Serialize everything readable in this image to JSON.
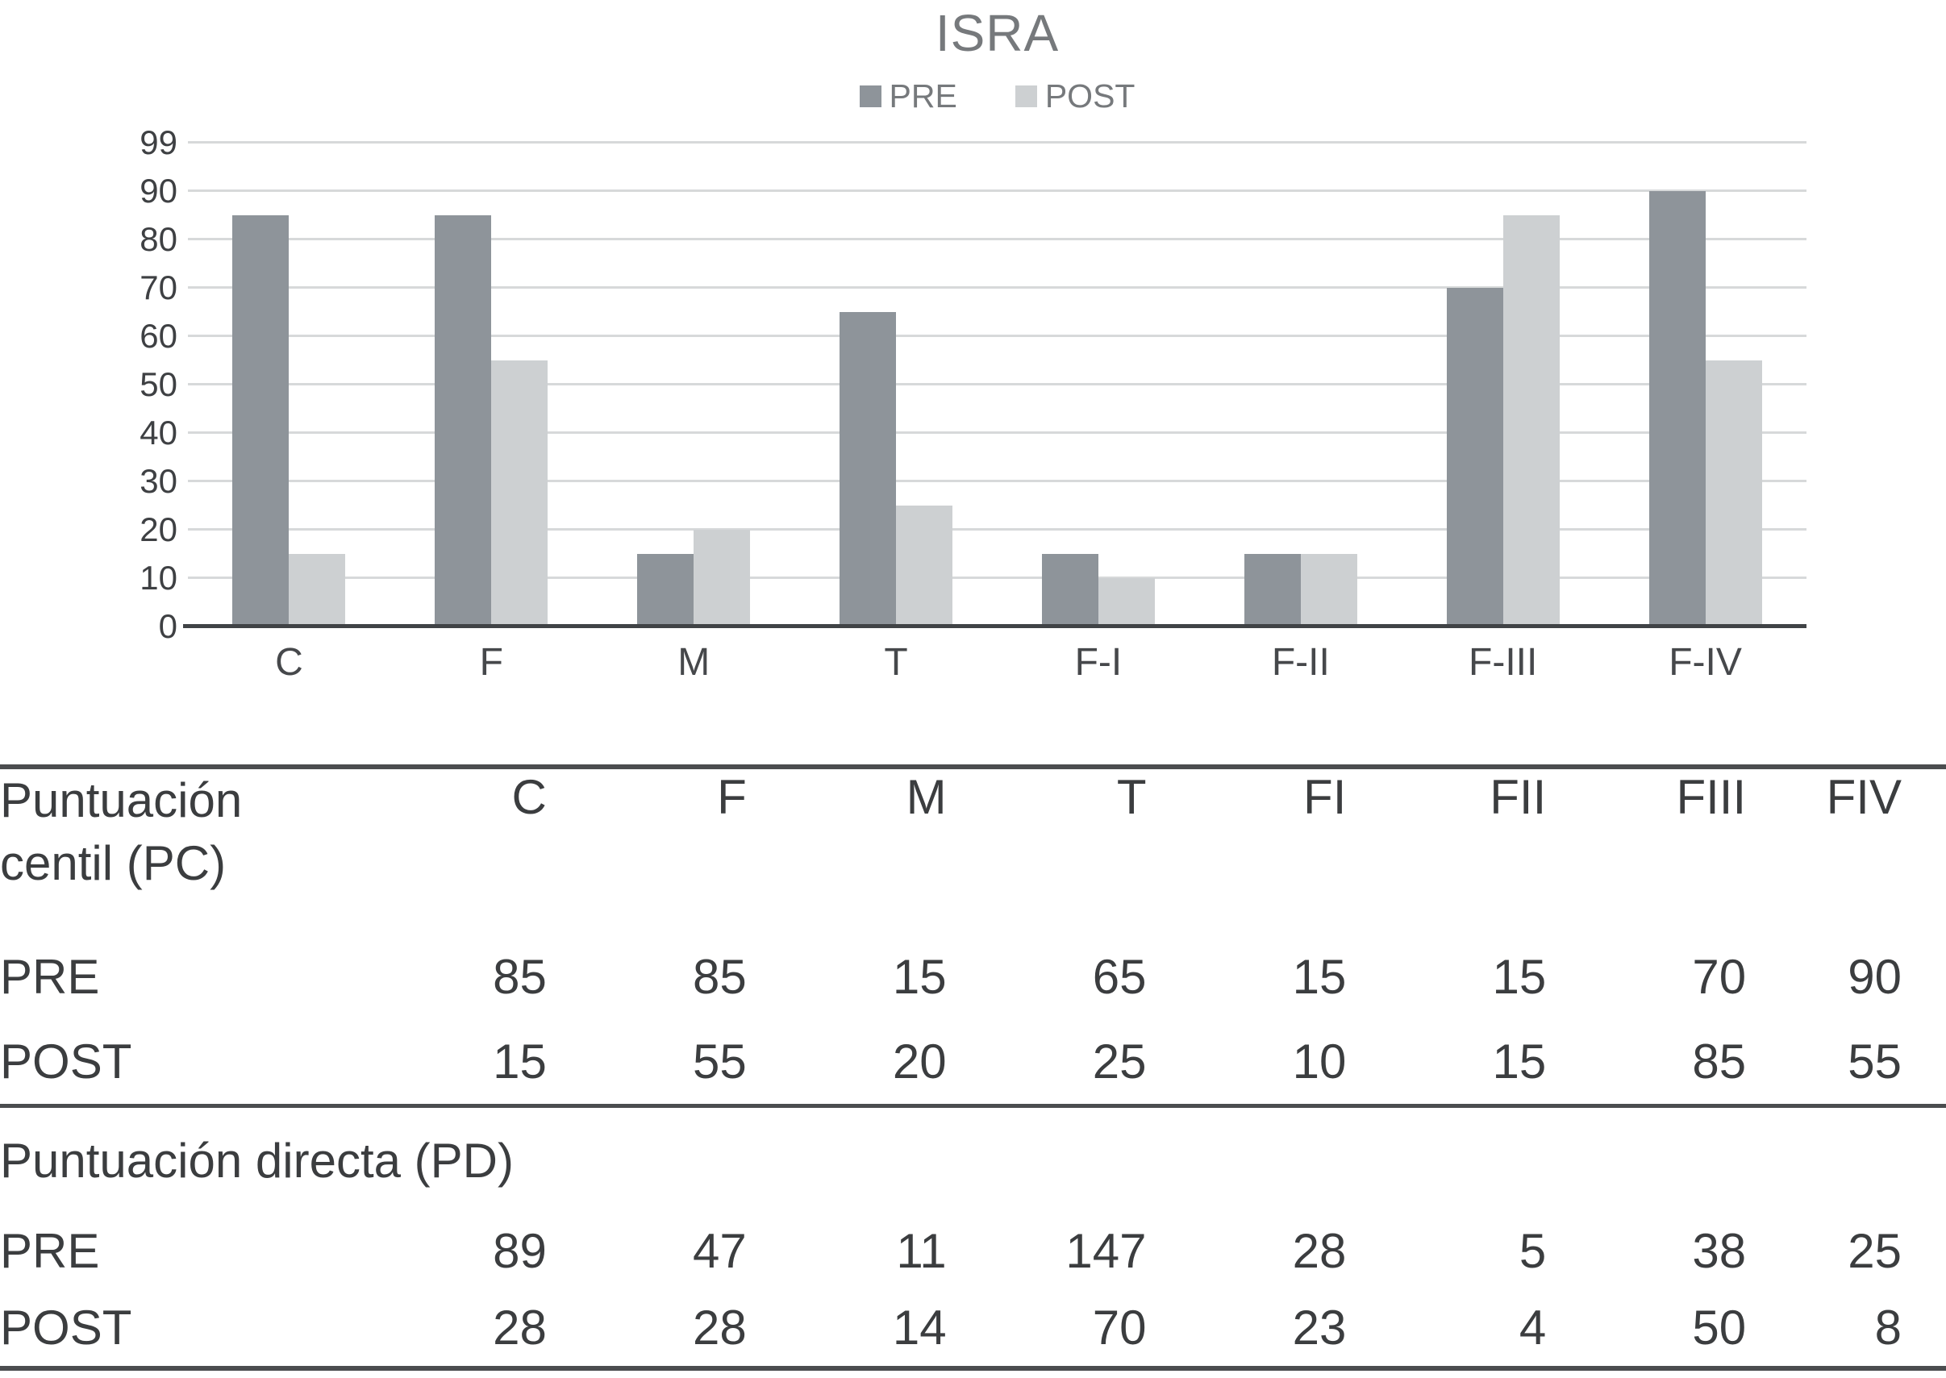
{
  "chart_data": {
    "type": "bar",
    "title": "ISRA",
    "categories": [
      "C",
      "F",
      "M",
      "T",
      "F-I",
      "F-II",
      "F-III",
      "F-IV"
    ],
    "series": [
      {
        "name": "PRE",
        "color": "#8e949a",
        "values": [
          85,
          85,
          15,
          65,
          15,
          15,
          70,
          90
        ]
      },
      {
        "name": "POST",
        "color": "#cdd0d2",
        "values": [
          15,
          55,
          20,
          25,
          10,
          15,
          85,
          55
        ]
      }
    ],
    "xlabel": "",
    "ylabel": "",
    "ylim": [
      0,
      99
    ],
    "yticks": [
      0,
      10,
      20,
      30,
      40,
      50,
      60,
      70,
      80,
      90,
      99
    ],
    "grid": true,
    "legend_position": "top-center"
  },
  "table": {
    "section1": {
      "title_line1": "Puntuación",
      "title_line2": "centil (PC)",
      "columns": [
        "C",
        "F",
        "M",
        "T",
        "FI",
        "FII",
        "FIII",
        "FIV"
      ],
      "rows": [
        {
          "label": "PRE",
          "values": [
            85,
            85,
            15,
            65,
            15,
            15,
            70,
            90
          ]
        },
        {
          "label": "POST",
          "values": [
            15,
            55,
            20,
            25,
            10,
            15,
            85,
            55
          ]
        }
      ]
    },
    "section2": {
      "title": "Puntuación directa (PD)",
      "rows": [
        {
          "label": "PRE",
          "values": [
            89,
            47,
            11,
            147,
            28,
            5,
            38,
            25
          ]
        },
        {
          "label": "POST",
          "values": [
            28,
            28,
            14,
            70,
            23,
            4,
            50,
            8
          ]
        }
      ]
    }
  },
  "colors": {
    "pre_bar": "#8e949a",
    "post_bar": "#cdd0d2",
    "gridline": "#d7d9da",
    "axis": "#404346",
    "muted_text": "#76797c",
    "table_rule": "#4b4d4f"
  }
}
